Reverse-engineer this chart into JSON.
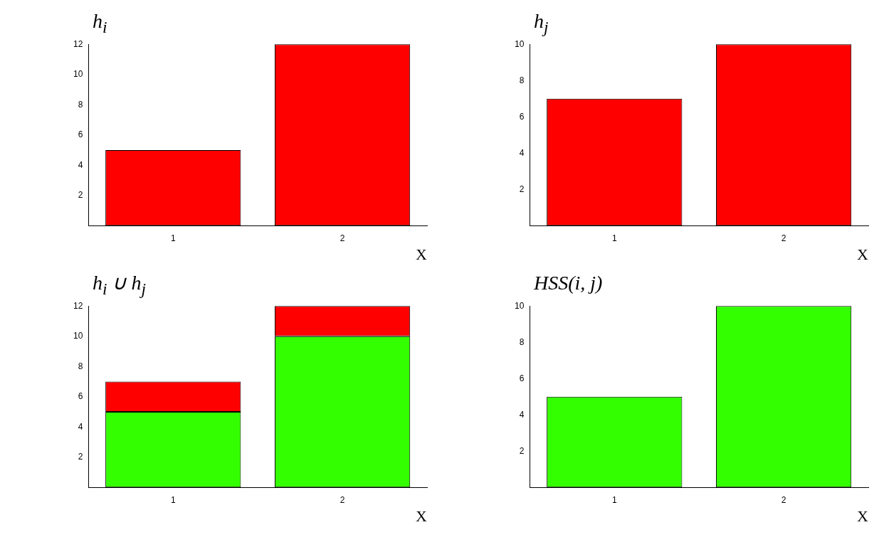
{
  "chart_data": [
    {
      "type": "bar",
      "title": "h$_{i}$",
      "xlabel": "X",
      "categories": [
        "1",
        "2"
      ],
      "values": [
        5,
        12
      ],
      "color": "#ff0000",
      "ylim": [
        0,
        12
      ],
      "yticks": [
        2,
        4,
        6,
        8,
        10,
        12
      ],
      "grid": false,
      "legend": false
    },
    {
      "type": "bar",
      "title": "h$_{j}$",
      "xlabel": "X",
      "categories": [
        "1",
        "2"
      ],
      "values": [
        7,
        10
      ],
      "color": "#ff0000",
      "ylim": [
        0,
        10
      ],
      "yticks": [
        2,
        4,
        6,
        8,
        10
      ],
      "grid": false,
      "legend": false
    },
    {
      "type": "bar",
      "title": "h$_{i}$ ∪ h$_{j}$",
      "xlabel": "X",
      "categories": [
        "1",
        "2"
      ],
      "stacked": true,
      "series": [
        {
          "color": "#33ff00",
          "values": [
            5,
            10
          ]
        },
        {
          "color": "#ff0000",
          "values": [
            2,
            2
          ]
        }
      ],
      "ylim": [
        0,
        12
      ],
      "yticks": [
        2,
        4,
        6,
        8,
        10,
        12
      ],
      "grid": false,
      "legend": false
    },
    {
      "type": "bar",
      "title": "HSS(i, j)",
      "xlabel": "X",
      "categories": [
        "1",
        "2"
      ],
      "values": [
        5,
        10
      ],
      "color": "#33ff00",
      "ylim": [
        0,
        10
      ],
      "yticks": [
        2,
        4,
        6,
        8,
        10
      ],
      "grid": false,
      "legend": false
    }
  ]
}
